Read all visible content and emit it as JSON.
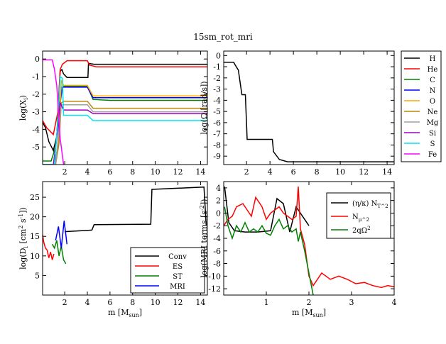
{
  "figure_title": "15sm_rot_mri",
  "chart_data": [
    {
      "id": "abund",
      "type": "line",
      "ylabel": "log(X_i)",
      "xlabel": "",
      "xlim": [
        0.05,
        14.6
      ],
      "ylim": [
        -6.0,
        0.45
      ],
      "xticks": [
        2,
        4,
        6,
        8,
        10,
        12,
        14
      ],
      "yticks": [
        0,
        -1,
        -2,
        -3,
        -4,
        -5
      ],
      "series": [
        {
          "name": "H",
          "color": "#000000",
          "points": [
            [
              0.05,
              -3.6
            ],
            [
              0.3,
              -3.9
            ],
            [
              0.6,
              -4.7
            ],
            [
              1.0,
              -5.2
            ],
            [
              1.3,
              -4.4
            ],
            [
              1.5,
              -2.0
            ],
            [
              1.6,
              -0.7
            ],
            [
              1.75,
              -0.6
            ],
            [
              1.9,
              -0.85
            ],
            [
              2.2,
              -1.05
            ],
            [
              4.05,
              -1.05
            ],
            [
              4.1,
              -0.25
            ],
            [
              4.6,
              -0.3
            ],
            [
              14.6,
              -0.3
            ]
          ]
        },
        {
          "name": "He",
          "color": "#ff0000",
          "points": [
            [
              0.05,
              -3.5
            ],
            [
              0.4,
              -3.9
            ],
            [
              1.0,
              -4.3
            ],
            [
              1.4,
              -3.0
            ],
            [
              1.6,
              -0.6
            ],
            [
              1.8,
              -0.3
            ],
            [
              2.2,
              -0.1
            ],
            [
              4.0,
              -0.1
            ],
            [
              4.2,
              -0.35
            ],
            [
              4.8,
              -0.45
            ],
            [
              14.6,
              -0.45
            ]
          ]
        },
        {
          "name": "C",
          "color": "#008000",
          "points": [
            [
              0.05,
              -5.8
            ],
            [
              0.8,
              -5.8
            ],
            [
              1.2,
              -5.0
            ],
            [
              1.5,
              -3.0
            ],
            [
              1.7,
              -1.6
            ],
            [
              2.0,
              -1.55
            ],
            [
              4.0,
              -1.55
            ],
            [
              4.5,
              -2.3
            ],
            [
              6.0,
              -2.35
            ],
            [
              14.6,
              -2.35
            ]
          ]
        },
        {
          "name": "N",
          "color": "#0000ff",
          "points": [
            [
              0.05,
              -6.0
            ],
            [
              1.1,
              -6.0
            ],
            [
              1.4,
              -5.0
            ],
            [
              1.6,
              -2.5
            ],
            [
              1.8,
              -1.6
            ],
            [
              4.0,
              -1.6
            ],
            [
              4.5,
              -2.2
            ],
            [
              14.6,
              -2.2
            ]
          ]
        },
        {
          "name": "O",
          "color": "#ffa500",
          "points": [
            [
              0.05,
              -6.0
            ],
            [
              1.2,
              -6.0
            ],
            [
              1.5,
              -4.5
            ],
            [
              1.7,
              -1.2
            ],
            [
              1.9,
              -1.5
            ],
            [
              4.0,
              -1.5
            ],
            [
              4.5,
              -2.1
            ],
            [
              14.6,
              -2.1
            ]
          ]
        },
        {
          "name": "Ne",
          "color": "#b8860b",
          "points": [
            [
              0.05,
              -6.0
            ],
            [
              1.2,
              -6.0
            ],
            [
              1.5,
              -4.8
            ],
            [
              1.7,
              -2.5
            ],
            [
              1.9,
              -2.4
            ],
            [
              4.0,
              -2.4
            ],
            [
              4.5,
              -2.8
            ],
            [
              14.6,
              -2.8
            ]
          ]
        },
        {
          "name": "Mg",
          "color": "#a0a0a0",
          "points": [
            [
              0.05,
              -6.0
            ],
            [
              1.2,
              -6.0
            ],
            [
              1.5,
              -4.0
            ],
            [
              1.7,
              -2.6
            ],
            [
              2.0,
              -2.6
            ],
            [
              4.0,
              -2.6
            ],
            [
              4.5,
              -3.0
            ],
            [
              14.6,
              -3.0
            ]
          ]
        },
        {
          "name": "Si",
          "color": "#a000c0",
          "points": [
            [
              0.05,
              -6.0
            ],
            [
              1.0,
              -6.0
            ],
            [
              1.4,
              -4.0
            ],
            [
              1.6,
              -2.5
            ],
            [
              1.9,
              -2.9
            ],
            [
              4.0,
              -2.9
            ],
            [
              4.5,
              -3.1
            ],
            [
              14.6,
              -3.1
            ]
          ]
        },
        {
          "name": "S",
          "color": "#00e5ee",
          "points": [
            [
              0.05,
              -6.0
            ],
            [
              1.1,
              -6.0
            ],
            [
              1.4,
              -3.5
            ],
            [
              1.6,
              -1.0
            ],
            [
              1.8,
              -1.1
            ],
            [
              1.9,
              -3.2
            ],
            [
              4.0,
              -3.2
            ],
            [
              4.5,
              -3.5
            ],
            [
              14.6,
              -3.5
            ]
          ]
        },
        {
          "name": "Fe",
          "color": "#ff00ff",
          "points": [
            [
              0.05,
              -0.05
            ],
            [
              0.9,
              -0.05
            ],
            [
              1.1,
              -0.6
            ],
            [
              1.3,
              -1.5
            ],
            [
              1.6,
              -4.5
            ],
            [
              1.9,
              -6.0
            ]
          ]
        }
      ]
    },
    {
      "id": "omega",
      "type": "line",
      "ylabel": "log(Ω [rad/s])",
      "xlabel": "",
      "xlim": [
        0.05,
        14.6
      ],
      "ylim": [
        -9.75,
        0.4
      ],
      "xticks": [
        2,
        4,
        6,
        8,
        10,
        12,
        14
      ],
      "yticks": [
        0,
        -1,
        -2,
        -3,
        -4,
        -5,
        -6,
        -7,
        -8,
        -9
      ],
      "series": [
        {
          "name": "Omega",
          "color": "#000000",
          "points": [
            [
              0.05,
              -0.6
            ],
            [
              0.9,
              -0.6
            ],
            [
              1.0,
              -0.8
            ],
            [
              1.3,
              -1.3
            ],
            [
              1.6,
              -3.5
            ],
            [
              1.9,
              -3.5
            ],
            [
              2.05,
              -7.5
            ],
            [
              4.2,
              -7.5
            ],
            [
              4.3,
              -8.6
            ],
            [
              4.8,
              -9.3
            ],
            [
              5.5,
              -9.5
            ],
            [
              14.6,
              -9.5
            ]
          ]
        }
      ]
    },
    {
      "id": "diff",
      "type": "line",
      "ylabel": "log(D_i [cm^2 s^-1])",
      "xlabel": "m [M_sun]",
      "xlim": [
        0.05,
        14.6
      ],
      "ylim": [
        0,
        29
      ],
      "xticks": [
        2,
        4,
        6,
        8,
        10,
        12,
        14
      ],
      "yticks": [
        5,
        10,
        15,
        20,
        25
      ],
      "legend": [
        "Conv",
        "ES",
        "ST",
        "MRI"
      ],
      "legend_position": "bottom-right",
      "series": [
        {
          "name": "Conv",
          "color": "#000000",
          "points": [
            [
              2.0,
              16.2
            ],
            [
              4.4,
              16.6
            ],
            [
              4.6,
              18.0
            ],
            [
              9.6,
              18.1
            ],
            [
              9.7,
              27.0
            ],
            [
              14.3,
              27.6
            ],
            [
              14.5,
              17.8
            ]
          ]
        },
        {
          "name": "ES",
          "color": "#ff0000",
          "points": [
            [
              0.05,
              15.5
            ],
            [
              0.15,
              13.5
            ],
            [
              0.3,
              12.0
            ],
            [
              0.45,
              11.5
            ],
            [
              0.6,
              9.5
            ],
            [
              0.75,
              11.0
            ],
            [
              0.9,
              9.0
            ],
            [
              1.05,
              10.5
            ]
          ]
        },
        {
          "name": "ST",
          "color": "#008000",
          "points": [
            [
              0.9,
              13.0
            ],
            [
              1.1,
              12.0
            ],
            [
              1.3,
              14.0
            ],
            [
              1.5,
              10.0
            ],
            [
              1.7,
              12.5
            ],
            [
              1.9,
              9.0
            ],
            [
              2.1,
              8.0
            ]
          ]
        },
        {
          "name": "MRI",
          "color": "#0000ff",
          "points": [
            [
              1.2,
              14.0
            ],
            [
              1.45,
              17.5
            ],
            [
              1.7,
              12.0
            ],
            [
              1.95,
              19.0
            ],
            [
              2.2,
              13.0
            ]
          ]
        }
      ]
    },
    {
      "id": "mri",
      "type": "line",
      "ylabel": "log(MRI terms [s^-2])",
      "xlabel": "m [M_sun]",
      "xlim": [
        0,
        4
      ],
      "ylim": [
        -13,
        5
      ],
      "xticks": [
        1,
        2,
        3,
        4
      ],
      "yticks": [
        4,
        2,
        0,
        -2,
        -4,
        -6,
        -8,
        -10,
        -12
      ],
      "legend": [
        "(η/κ) N_T^2",
        "N_μ^2",
        "2qΩ^2"
      ],
      "legend_position": "top-right",
      "series": [
        {
          "name": "eta_kappa_NT2",
          "color": "#000000",
          "points": [
            [
              0.02,
              4.2
            ],
            [
              0.12,
              -1.5
            ],
            [
              0.25,
              -2.8
            ],
            [
              0.5,
              -3.0
            ],
            [
              0.8,
              -3.0
            ],
            [
              1.1,
              -2.8
            ],
            [
              1.25,
              2.3
            ],
            [
              1.4,
              1.5
            ],
            [
              1.55,
              -3.0
            ],
            [
              1.7,
              1.0
            ],
            [
              1.85,
              -0.5
            ],
            [
              2.0,
              -2.0
            ]
          ]
        },
        {
          "name": "N_mu2",
          "color": "#ff0000",
          "points": [
            [
              0.0,
              -2.0
            ],
            [
              0.1,
              -1.0
            ],
            [
              0.2,
              -0.5
            ],
            [
              0.3,
              1.0
            ],
            [
              0.45,
              1.5
            ],
            [
              0.55,
              0.5
            ],
            [
              0.65,
              -0.5
            ],
            [
              0.75,
              2.5
            ],
            [
              0.9,
              1.0
            ],
            [
              1.0,
              -1.0
            ],
            [
              1.1,
              0.0
            ],
            [
              1.2,
              0.5
            ],
            [
              1.3,
              1.0
            ],
            [
              1.4,
              0.0
            ],
            [
              1.5,
              -0.5
            ],
            [
              1.6,
              -1.0
            ],
            [
              1.7,
              -0.5
            ],
            [
              1.75,
              4.2
            ],
            [
              1.8,
              -2.5
            ],
            [
              1.9,
              -5.0
            ],
            [
              2.0,
              -10.0
            ],
            [
              2.1,
              -11.5
            ],
            [
              2.3,
              -9.5
            ],
            [
              2.5,
              -10.5
            ],
            [
              2.7,
              -10.0
            ],
            [
              2.9,
              -10.5
            ],
            [
              3.1,
              -11.2
            ],
            [
              3.3,
              -11.0
            ],
            [
              3.5,
              -11.5
            ],
            [
              3.7,
              -11.8
            ],
            [
              3.85,
              -11.5
            ],
            [
              4.0,
              -11.7
            ]
          ]
        },
        {
          "name": "2qOmega2",
          "color": "#008000",
          "points": [
            [
              0.02,
              1.0
            ],
            [
              0.1,
              -2.0
            ],
            [
              0.2,
              -4.0
            ],
            [
              0.3,
              -2.0
            ],
            [
              0.4,
              -3.0
            ],
            [
              0.5,
              -1.5
            ],
            [
              0.6,
              -3.0
            ],
            [
              0.7,
              -2.5
            ],
            [
              0.8,
              -3.0
            ],
            [
              0.9,
              -2.0
            ],
            [
              1.0,
              -3.2
            ],
            [
              1.1,
              -3.5
            ],
            [
              1.2,
              -2.0
            ],
            [
              1.3,
              -1.0
            ],
            [
              1.4,
              -2.5
            ],
            [
              1.5,
              -2.0
            ],
            [
              1.6,
              -3.0
            ],
            [
              1.7,
              -2.5
            ],
            [
              1.75,
              -4.5
            ],
            [
              1.8,
              -3.0
            ],
            [
              1.9,
              -6.0
            ],
            [
              2.0,
              -9.5
            ],
            [
              2.1,
              -13.0
            ]
          ]
        }
      ]
    }
  ],
  "top_legend": {
    "entries": [
      {
        "label": "H",
        "color": "#000000"
      },
      {
        "label": "He",
        "color": "#ff0000"
      },
      {
        "label": "C",
        "color": "#008000"
      },
      {
        "label": "N",
        "color": "#0000ff"
      },
      {
        "label": "O",
        "color": "#ffa500"
      },
      {
        "label": "Ne",
        "color": "#b8860b"
      },
      {
        "label": "Mg",
        "color": "#a0a0a0"
      },
      {
        "label": "Si",
        "color": "#a000c0"
      },
      {
        "label": "S",
        "color": "#00e5ee"
      },
      {
        "label": "Fe",
        "color": "#ff00ff"
      }
    ]
  }
}
